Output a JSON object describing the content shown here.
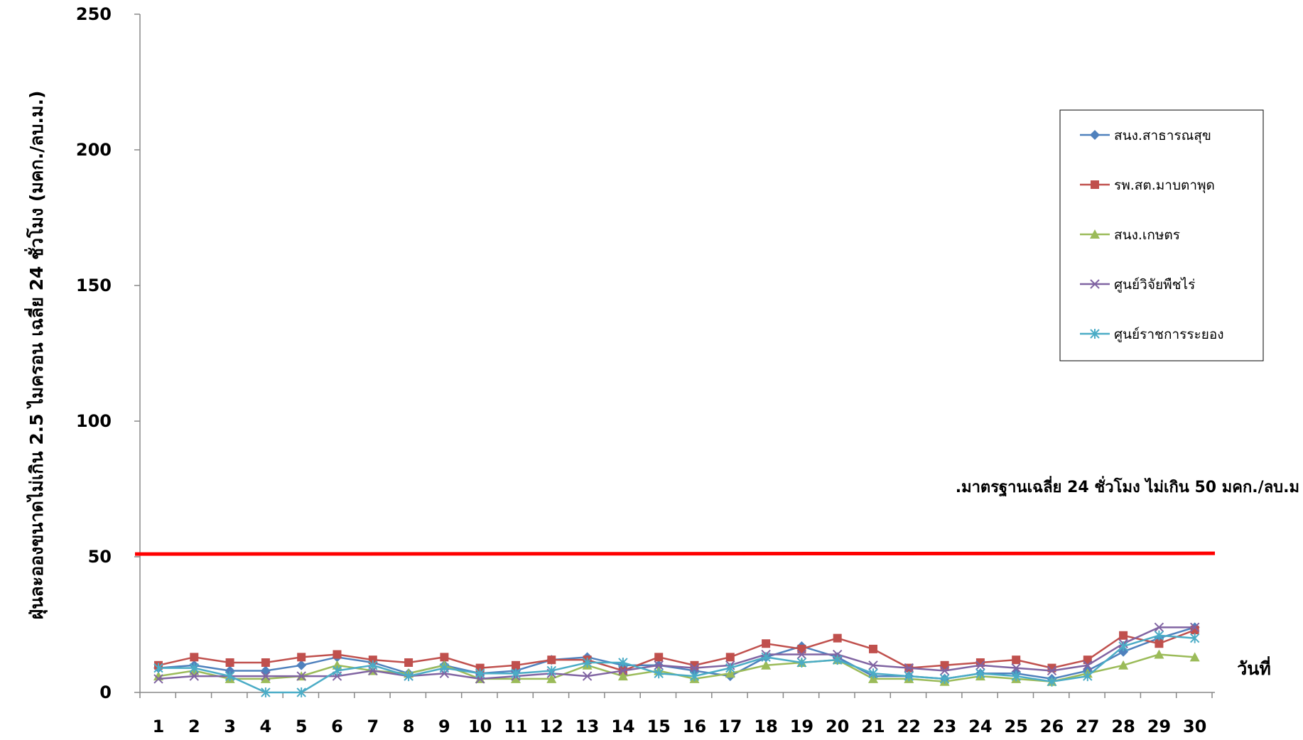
{
  "chart_data": {
    "type": "line",
    "title": "",
    "ylabel": "ฝุ่นละอองขนาดไม่เกิน 2.5 ไมครอน เฉลี่ย 24 ชั่วโมง (มคก./ลบ.ม.)",
    "xlabel": "วันที่",
    "ylim": [
      0,
      250
    ],
    "yticks": [
      "0",
      "50",
      "100",
      "150",
      "200",
      "250"
    ],
    "categories": [
      "1",
      "2",
      "3",
      "4",
      "5",
      "6",
      "7",
      "8",
      "9",
      "10",
      "11",
      "12",
      "13",
      "14",
      "15",
      "16",
      "17",
      "18",
      "19",
      "20",
      "21",
      "22",
      "23",
      "24",
      "25",
      "26",
      "27",
      "28",
      "29",
      "30"
    ],
    "grid": false,
    "legend_position": "right",
    "series": [
      {
        "name": "สนง.สาธารณสุข",
        "color": "#4F81BD",
        "marker": "diamond",
        "values": [
          9,
          10,
          8,
          8,
          10,
          13,
          11,
          7,
          10,
          7,
          8,
          12,
          13,
          10,
          10,
          8,
          6,
          13,
          17,
          13,
          6,
          6,
          5,
          7,
          7,
          5,
          8,
          15,
          20,
          24
        ]
      },
      {
        "name": "รพ.สต.มาบตาพุด",
        "color": "#C0504D",
        "marker": "square",
        "values": [
          10,
          13,
          11,
          11,
          13,
          14,
          12,
          11,
          13,
          9,
          10,
          12,
          12,
          8,
          13,
          10,
          13,
          18,
          16,
          20,
          16,
          9,
          10,
          11,
          12,
          9,
          12,
          21,
          18,
          23
        ]
      },
      {
        "name": "สนง.เกษตร",
        "color": "#9BBB59",
        "marker": "triangle",
        "values": [
          6,
          8,
          5,
          5,
          6,
          10,
          8,
          7,
          10,
          5,
          5,
          5,
          10,
          6,
          8,
          5,
          7,
          10,
          11,
          12,
          5,
          5,
          4,
          6,
          5,
          4,
          7,
          10,
          14,
          13
        ]
      },
      {
        "name": "ศูนย์วิจัยพืชไร่",
        "color": "#8064A2",
        "marker": "x",
        "values": [
          5,
          6,
          6,
          6,
          6,
          6,
          8,
          6,
          7,
          5,
          6,
          7,
          6,
          8,
          10,
          9,
          10,
          14,
          14,
          14,
          10,
          9,
          8,
          10,
          9,
          8,
          10,
          18,
          24,
          24
        ]
      },
      {
        "name": "ศูนย์ราชการระยอง",
        "color": "#4BACC6",
        "marker": "star",
        "values": [
          9,
          9,
          6,
          0,
          0,
          8,
          10,
          6,
          9,
          7,
          7,
          8,
          11,
          11,
          7,
          6,
          9,
          13,
          11,
          12,
          7,
          6,
          5,
          7,
          6,
          4,
          6,
          17,
          21,
          20
        ]
      }
    ],
    "reference_line": {
      "value": 51,
      "color": "#FF0000",
      "label": ".มาตรฐานเฉลี่ย 24 ชั่วโมง ไม่เกิน 50 มคก./ลบ.ม"
    }
  }
}
